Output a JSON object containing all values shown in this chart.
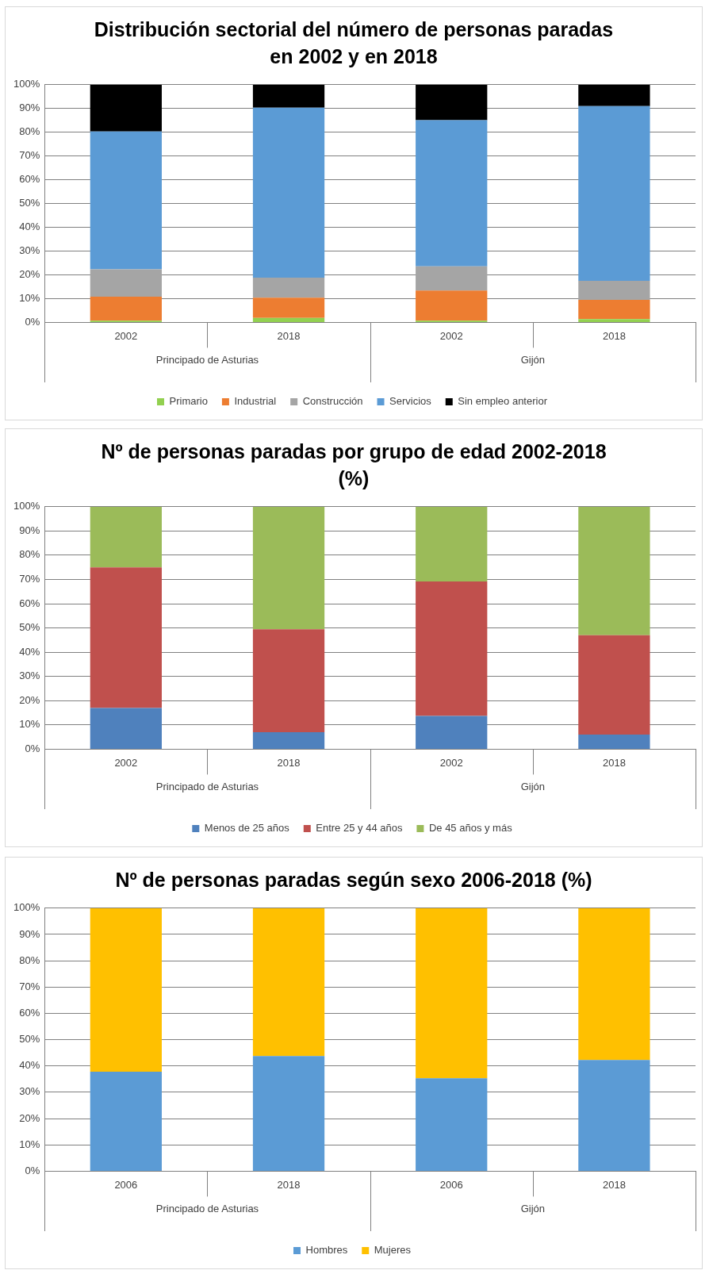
{
  "chart_data": [
    {
      "type": "bar",
      "title": "Distribución sectorial del número de personas paradas en 2002 y en 2018",
      "categories": [
        "2002",
        "2018",
        "2002",
        "2018"
      ],
      "stacked": true,
      "grid": "y",
      "legend": "bottom",
      "annotations": [
        "Principado de Asturias",
        "Gijón"
      ],
      "ylim": [
        0,
        100
      ],
      "yticks": [
        {
          "value": 0,
          "label": "0%"
        },
        {
          "value": 10,
          "label": "10%"
        },
        {
          "value": 20,
          "label": "20%"
        },
        {
          "value": 30,
          "label": "30%"
        },
        {
          "value": 40,
          "label": "40%"
        },
        {
          "value": 50,
          "label": "50%"
        },
        {
          "value": 60,
          "label": "60%"
        },
        {
          "value": 70,
          "label": "70%"
        },
        {
          "value": 80,
          "label": "80%"
        },
        {
          "value": 90,
          "label": "90%"
        },
        {
          "value": 100,
          "label": "100%"
        }
      ],
      "series": [
        {
          "name": "Primario",
          "color": "#92d050",
          "values": [
            0.7,
            1.9,
            0.7,
            1.4
          ]
        },
        {
          "name": "Industrial",
          "color": "#ed7d31",
          "values": [
            10.1,
            8.5,
            12.7,
            8.1
          ]
        },
        {
          "name": "Construcción",
          "color": "#a5a5a5",
          "values": [
            11.5,
            8.4,
            10.2,
            8.0
          ]
        },
        {
          "name": "Servicios",
          "color": "#5b9bd5",
          "values": [
            58.0,
            71.5,
            61.5,
            73.5
          ]
        },
        {
          "name": "Sin empleo anterior",
          "color": "#000000",
          "values": [
            19.7,
            9.7,
            14.9,
            9.0
          ]
        }
      ]
    },
    {
      "type": "bar",
      "title": "Nº de personas paradas por grupo de edad 2002-2018 (%)",
      "categories": [
        "2002",
        "2018",
        "2002",
        "2018"
      ],
      "stacked": true,
      "grid": "y",
      "legend": "bottom",
      "annotations": [
        "Principado de Asturias",
        "Gijón"
      ],
      "ylim": [
        0,
        100
      ],
      "yticks": [
        {
          "value": 0,
          "label": "0%"
        },
        {
          "value": 10,
          "label": "10%"
        },
        {
          "value": 20,
          "label": "20%"
        },
        {
          "value": 30,
          "label": "30%"
        },
        {
          "value": 40,
          "label": "40%"
        },
        {
          "value": 50,
          "label": "50%"
        },
        {
          "value": 60,
          "label": "60%"
        },
        {
          "value": 70,
          "label": "70%"
        },
        {
          "value": 80,
          "label": "80%"
        },
        {
          "value": 90,
          "label": "90%"
        },
        {
          "value": 100,
          "label": "100%"
        }
      ],
      "series": [
        {
          "name": "Menos de 25 años",
          "color": "#4f81bd",
          "values": [
            17.0,
            7.0,
            13.7,
            6.0
          ]
        },
        {
          "name": "Entre 25 y 44 años",
          "color": "#c0504d",
          "values": [
            58.0,
            42.5,
            55.5,
            41.0
          ]
        },
        {
          "name": "De 45 años y más",
          "color": "#9bbb59",
          "values": [
            25.0,
            50.5,
            30.8,
            53.0
          ]
        }
      ]
    },
    {
      "type": "bar",
      "title": "Nº de personas paradas según sexo 2006-2018 (%)",
      "categories": [
        "2006",
        "2018",
        "2006",
        "2018"
      ],
      "stacked": true,
      "grid": "y",
      "legend": "bottom",
      "annotations": [
        "Principado de Asturias",
        "Gijón"
      ],
      "ylim": [
        0,
        100
      ],
      "yticks": [
        {
          "value": 0,
          "label": "0%"
        },
        {
          "value": 10,
          "label": "10%"
        },
        {
          "value": 20,
          "label": "20%"
        },
        {
          "value": 30,
          "label": "30%"
        },
        {
          "value": 40,
          "label": "40%"
        },
        {
          "value": 50,
          "label": "50%"
        },
        {
          "value": 60,
          "label": "60%"
        },
        {
          "value": 70,
          "label": "70%"
        },
        {
          "value": 80,
          "label": "80%"
        },
        {
          "value": 90,
          "label": "90%"
        },
        {
          "value": 100,
          "label": "100%"
        }
      ],
      "series": [
        {
          "name": "Hombres",
          "color": "#5b9bd5",
          "values": [
            37.8,
            43.8,
            35.3,
            42.3
          ]
        },
        {
          "name": "Mujeres",
          "color": "#ffc000",
          "values": [
            62.2,
            56.2,
            64.7,
            57.7
          ]
        }
      ]
    }
  ]
}
